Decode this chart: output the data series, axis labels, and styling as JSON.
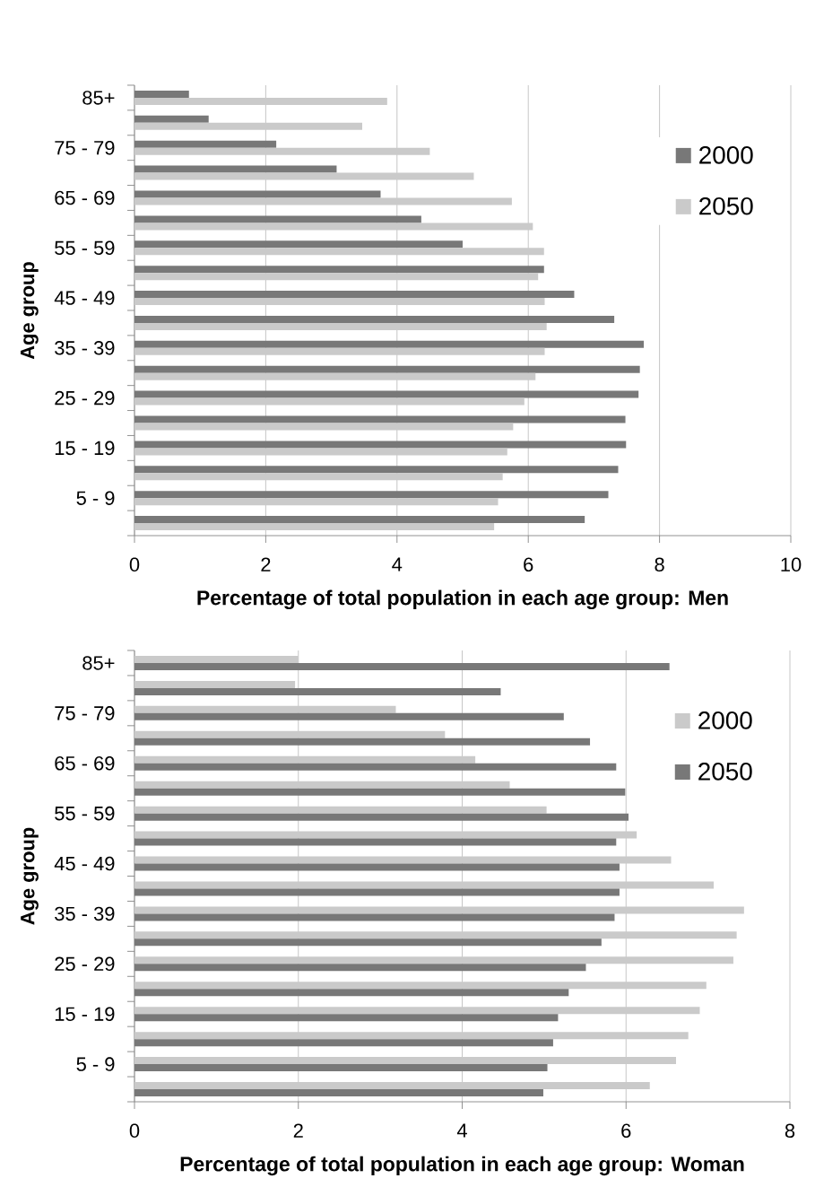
{
  "chart_data": [
    {
      "type": "bar",
      "orientation": "horizontal",
      "categories": [
        "85+",
        null,
        "75 - 79",
        null,
        "65 - 69",
        null,
        "55 - 59",
        null,
        "45 - 49",
        null,
        "35 - 39",
        null,
        "25 - 29",
        null,
        "15 - 19",
        null,
        "5 - 9",
        null
      ],
      "series": [
        {
          "name": "2000",
          "color": "#787878",
          "values": [
            0.83,
            1.13,
            2.16,
            3.08,
            3.75,
            4.37,
            5.0,
            6.24,
            6.7,
            7.31,
            7.76,
            7.7,
            7.68,
            7.48,
            7.49,
            7.37,
            7.22,
            6.86
          ]
        },
        {
          "name": "2050",
          "color": "#cacaca",
          "values": [
            3.85,
            3.47,
            4.5,
            5.17,
            5.75,
            6.07,
            6.24,
            6.15,
            6.25,
            6.28,
            6.25,
            6.11,
            5.94,
            5.77,
            5.68,
            5.61,
            5.54,
            5.48
          ]
        }
      ],
      "xlabel": "Percentage of total population in each age group: Men",
      "ylabel": "Age group",
      "xlim": [
        0,
        10
      ],
      "xticks": [
        0,
        2,
        4,
        6,
        8,
        10
      ],
      "grid": "x",
      "legend": "top right"
    },
    {
      "type": "bar",
      "orientation": "horizontal",
      "categories": [
        "85+",
        null,
        "75 - 79",
        null,
        "65 - 69",
        null,
        "55 - 59",
        null,
        "45 - 49",
        null,
        "35 - 39",
        null,
        "25 - 29",
        null,
        "15 - 19",
        null,
        "5 - 9",
        null
      ],
      "series": [
        {
          "name": "2000",
          "color": "#cacaca",
          "values": [
            2.0,
            1.96,
            3.19,
            3.79,
            4.16,
            4.58,
            5.03,
            6.13,
            6.55,
            7.07,
            7.44,
            7.35,
            7.31,
            6.98,
            6.9,
            6.76,
            6.61,
            6.29
          ]
        },
        {
          "name": "2050",
          "color": "#787878",
          "values": [
            6.53,
            4.47,
            5.24,
            5.56,
            5.88,
            5.99,
            6.03,
            5.88,
            5.92,
            5.92,
            5.86,
            5.7,
            5.51,
            5.3,
            5.17,
            5.11,
            5.04,
            4.99
          ]
        }
      ],
      "xlabel": "Percentage of total population in each age group: Woman",
      "ylabel": "Age group",
      "xlim": [
        0,
        8
      ],
      "xticks": [
        0,
        2,
        4,
        6,
        8
      ],
      "grid": "x",
      "legend": "top right"
    }
  ]
}
